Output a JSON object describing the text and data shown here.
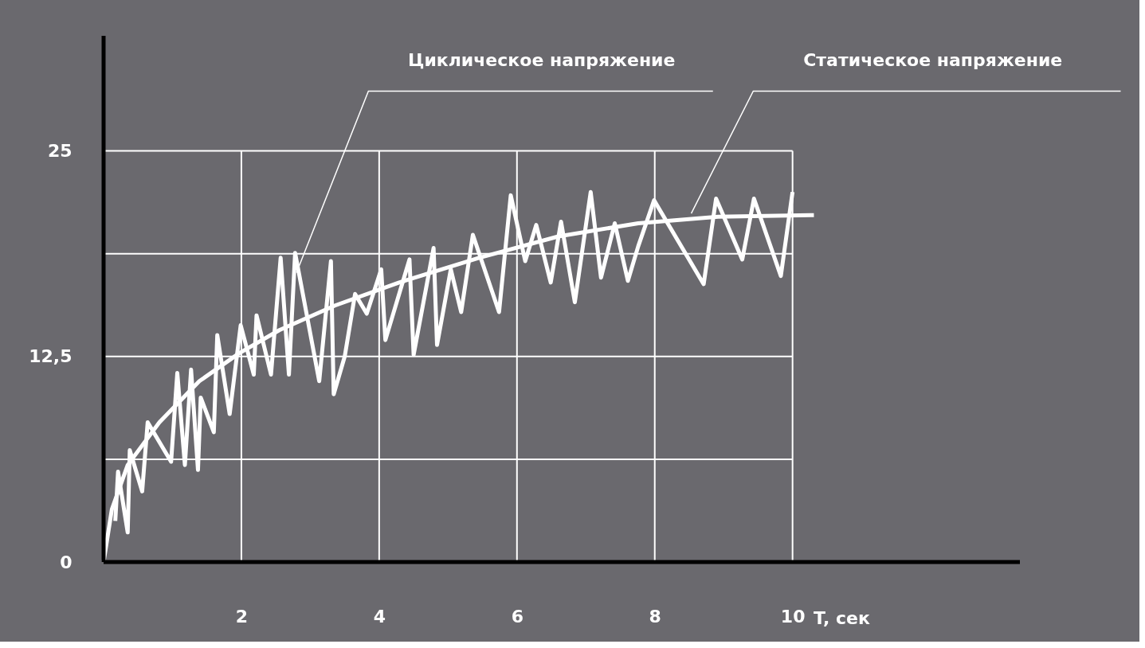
{
  "chart_data": {
    "type": "line",
    "xlabel": "T, сек",
    "xlim": [
      0,
      13.3
    ],
    "ylim": [
      0,
      32
    ],
    "xticks": [
      2,
      4,
      6,
      8,
      10
    ],
    "yticks": [
      0,
      {
        "value": 6.25,
        "label": null
      },
      {
        "value": 12.5,
        "label": "12,5"
      },
      {
        "value": 18.75,
        "label": null
      },
      25
    ],
    "grid": true,
    "line_style": "solid",
    "marker": "none",
    "annotations": [
      {
        "text": "Циклическое напряжение",
        "x": 2.8,
        "y": 17.6
      },
      {
        "text": "Статическое напряжение",
        "x": 8.53,
        "y": 21.2
      }
    ],
    "series": [
      {
        "color": "#ffffff",
        "x": [
          0.17,
          0.21,
          0.35,
          0.38,
          0.56,
          0.64,
          0.98,
          1.07,
          1.18,
          1.27,
          1.37,
          1.41,
          1.6,
          1.65,
          1.83,
          1.99,
          2.18,
          2.22,
          2.43,
          2.57,
          2.69,
          2.78,
          3.13,
          3.3,
          3.34,
          3.5,
          3.65,
          3.82,
          4.03,
          4.09,
          4.44,
          4.5,
          4.79,
          4.84,
          5.04,
          5.19,
          5.36,
          5.74,
          5.91,
          6.12,
          6.28,
          6.49,
          6.64,
          6.84,
          7.07,
          7.22,
          7.42,
          7.61,
          7.76,
          7.99,
          8.71,
          8.89,
          9.27,
          9.44,
          9.83,
          10.0
        ],
        "values": [
          2.5,
          5.5,
          1.8,
          6.8,
          4.3,
          8.5,
          6.1,
          11.5,
          5.9,
          11.7,
          5.6,
          10.0,
          7.9,
          13.8,
          9.0,
          14.4,
          11.4,
          15.0,
          11.4,
          18.5,
          11.4,
          18.8,
          11.0,
          18.3,
          10.2,
          12.5,
          16.3,
          15.1,
          17.8,
          13.5,
          18.4,
          12.6,
          19.1,
          13.2,
          17.8,
          15.2,
          19.9,
          15.2,
          22.3,
          18.3,
          20.5,
          17.0,
          20.7,
          15.8,
          22.5,
          17.3,
          20.6,
          17.1,
          19.2,
          22.0,
          16.9,
          22.1,
          18.4,
          22.1,
          17.4,
          22.5
        ]
      },
      {
        "color": "#ffffff",
        "x": [
          0,
          0.12,
          0.35,
          0.81,
          1.39,
          1.97,
          2.55,
          3.36,
          4.29,
          5.45,
          6.6,
          7.76,
          8.92,
          10.31
        ],
        "values": [
          0,
          3.2,
          5.9,
          8.5,
          11.0,
          12.7,
          14.1,
          15.6,
          17.0,
          18.5,
          19.8,
          20.6,
          21.0,
          21.1
        ]
      }
    ]
  }
}
